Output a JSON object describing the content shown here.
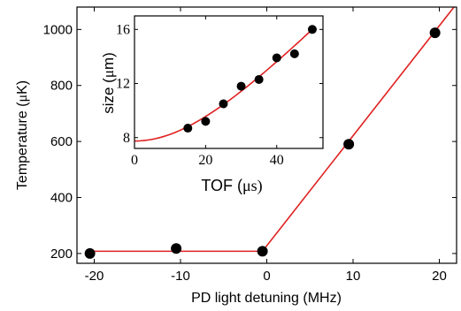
{
  "chart_data": [
    {
      "type": "scatter",
      "xlabel": "PD light detuning (MHz)",
      "ylabel_prefix": "Temperature (",
      "ylabel_greek": "μ",
      "ylabel_suffix": "K)",
      "xlim": [
        -22,
        22
      ],
      "ylim": [
        165,
        1080
      ],
      "xticks": [
        -20,
        -10,
        0,
        10,
        20
      ],
      "xtick_labels": [
        "-20",
        "-10",
        "0",
        "10",
        "20"
      ],
      "yticks": [
        200,
        400,
        600,
        800,
        1000
      ],
      "ytick_labels": [
        "200",
        "400",
        "600",
        "800",
        "1000"
      ],
      "grid": false,
      "colors": {
        "points": "#000000",
        "fit": "#e02020"
      },
      "series": [
        {
          "kind": "points",
          "x": [
            -20.5,
            -10.5,
            -0.5,
            9.5,
            19.5
          ],
          "y": [
            200,
            218,
            208,
            590,
            988
          ]
        },
        {
          "kind": "fit",
          "x": [
            -20.5,
            -0.5,
            21.7
          ],
          "y": [
            208,
            208,
            1080
          ]
        }
      ]
    },
    {
      "type": "scatter",
      "inset": true,
      "xlabel_prefix": "TOF (",
      "xlabel_greek": "μ",
      "xlabel_suffix": "s)",
      "ylabel_prefix": "size (",
      "ylabel_greek": "μ",
      "ylabel_suffix": "m)",
      "xlim": [
        0,
        53
      ],
      "ylim": [
        7.2,
        17
      ],
      "xticks": [
        0,
        20,
        40
      ],
      "xtick_labels": [
        "0",
        "20",
        "40"
      ],
      "yticks": [
        8,
        12,
        16
      ],
      "ytick_labels": [
        "8",
        "12",
        "16"
      ],
      "grid": false,
      "colors": {
        "points": "#000000",
        "fit": "#e02020"
      },
      "series": [
        {
          "kind": "points",
          "x": [
            15,
            20,
            25,
            30,
            35,
            40,
            45,
            50
          ],
          "y": [
            8.7,
            9.2,
            10.5,
            11.8,
            12.3,
            13.9,
            14.2,
            16.0
          ]
        },
        {
          "kind": "fit",
          "model": "sqrt(s0^2 + v^2 t^2)",
          "params": {
            "s0": 7.75,
            "v": 0.28
          },
          "x_range": [
            0,
            50
          ]
        }
      ]
    }
  ]
}
